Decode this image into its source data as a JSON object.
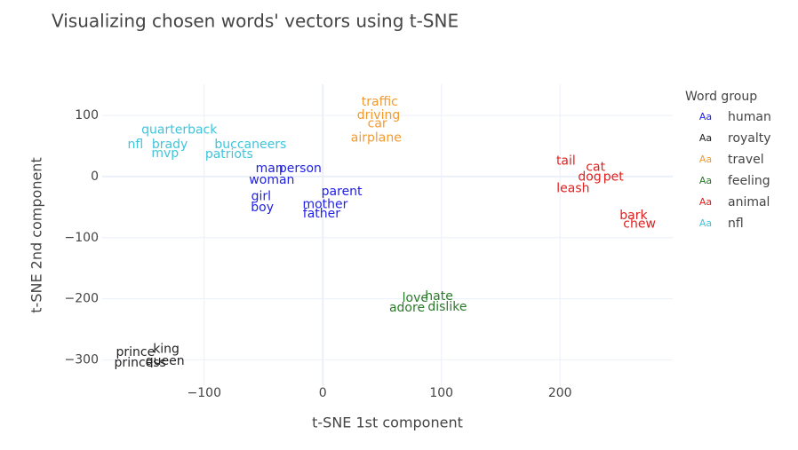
{
  "chart_data": {
    "type": "scatter",
    "mode": "text",
    "title": "Visualizing chosen words' vectors using t-SNE",
    "xlabel": "t-SNE 1st component",
    "ylabel": "t-SNE 2nd component",
    "legend_title": "Word group",
    "legend_marker": "Aa",
    "xlim": [
      -186,
      295
    ],
    "ylim": [
      -343,
      151
    ],
    "xticks": [
      {
        "value": -100,
        "label": "−100"
      },
      0,
      100,
      200
    ],
    "yticks": [
      100,
      0,
      {
        "value": -100,
        "label": "−100"
      },
      {
        "value": -200,
        "label": "−200"
      },
      {
        "value": -300,
        "label": "−300"
      }
    ],
    "grid": true,
    "series": [
      {
        "name": "human",
        "color": "#1f1fe6",
        "text": [
          "man",
          "person",
          "woman",
          "girl",
          "boy",
          "parent",
          "mother",
          "father"
        ],
        "x": [
          -45,
          -19,
          -43,
          -52,
          -51,
          16,
          2,
          -1
        ],
        "y": [
          13,
          13,
          -6,
          -33,
          -51,
          -25,
          -46,
          -61
        ]
      },
      {
        "name": "royalty",
        "color": "#222222",
        "text": [
          "prince",
          "king",
          "princess",
          "queen"
        ],
        "x": [
          -158,
          -132,
          -154,
          -133
        ],
        "y": [
          -288,
          -283,
          -305,
          -302
        ]
      },
      {
        "name": "travel",
        "color": "#f39a2e",
        "text": [
          "traffic",
          "driving",
          "car",
          "airplane"
        ],
        "x": [
          48,
          47,
          46,
          45
        ],
        "y": [
          122,
          100,
          86,
          63
        ]
      },
      {
        "name": "feeling",
        "color": "#2a7a2a",
        "text": [
          "love",
          "hate",
          "adore",
          "dislike"
        ],
        "x": [
          78,
          98,
          71,
          105
        ],
        "y": [
          -199,
          -196,
          -215,
          -214
        ]
      },
      {
        "name": "animal",
        "color": "#e0201e",
        "text": [
          "tail",
          "cat",
          "dog",
          "pet",
          "leash",
          "bark",
          "chew"
        ],
        "x": [
          205,
          230,
          225,
          245,
          211,
          262,
          267
        ],
        "y": [
          25,
          15,
          -1,
          -1,
          -20,
          -64,
          -78
        ]
      },
      {
        "name": "nfl",
        "color": "#3fc4dc",
        "text": [
          "quarterback",
          "nfl",
          "brady",
          "buccaneers",
          "mvp",
          "patriots"
        ],
        "x": [
          -121,
          -158,
          -129,
          -61,
          -133,
          -79
        ],
        "y": [
          76,
          52,
          52,
          52,
          38,
          36
        ]
      }
    ]
  }
}
